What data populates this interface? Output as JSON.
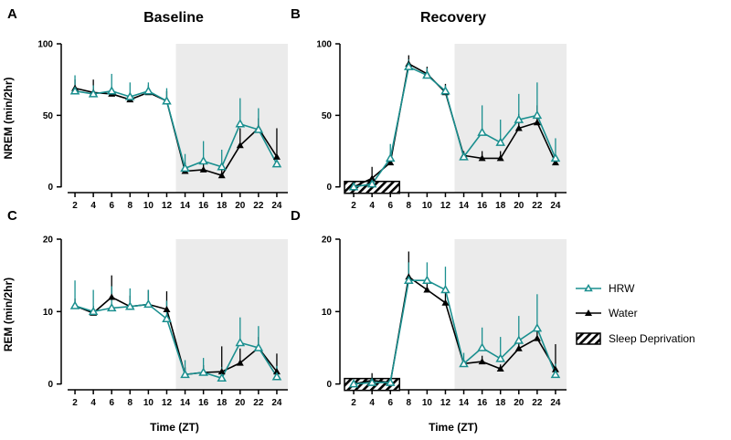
{
  "figure": {
    "column_titles": [
      "Baseline",
      "Recovery"
    ],
    "legend": {
      "items": [
        {
          "label": "HRW",
          "symbol": "open-triangle",
          "color": "#1a8f8f"
        },
        {
          "label": "Water",
          "symbol": "filled-triangle",
          "color": "#000000"
        },
        {
          "label": "Sleep Deprivation",
          "symbol": "hatched-box",
          "color": "#000000"
        }
      ]
    },
    "colors": {
      "hrw": "#1a8f8f",
      "water": "#000000",
      "dark_shade": "#ebebeb"
    }
  },
  "chart_data": [
    {
      "panel": "A",
      "type": "line",
      "title": "Baseline",
      "xlabel": "",
      "ylabel": "NREM (min/2hr)",
      "x": [
        2,
        4,
        6,
        8,
        10,
        12,
        14,
        16,
        18,
        20,
        22,
        24
      ],
      "x_ticks": [
        2,
        4,
        6,
        8,
        10,
        12,
        14,
        16,
        18,
        20,
        22,
        24
      ],
      "y_ticks": [
        0,
        50,
        100
      ],
      "xlim": [
        0.5,
        25.2
      ],
      "ylim": [
        -4,
        100
      ],
      "dark_phase": [
        13,
        25.2
      ],
      "sleep_deprivation": null,
      "series": [
        {
          "name": "HRW",
          "values": [
            67,
            65,
            67,
            63,
            67,
            60,
            13,
            18,
            14,
            44,
            40,
            16
          ],
          "error": [
            11,
            6,
            12,
            10,
            6,
            9,
            10,
            14,
            12,
            18,
            15,
            6
          ]
        },
        {
          "name": "Water",
          "values": [
            69,
            66,
            65,
            61,
            66,
            60,
            11,
            12,
            8,
            29,
            41,
            21
          ],
          "error": [
            6,
            9,
            5,
            5,
            5,
            7,
            6,
            6,
            5,
            12,
            7,
            20
          ]
        }
      ]
    },
    {
      "panel": "B",
      "type": "line",
      "title": "Recovery",
      "xlabel": "",
      "ylabel": "",
      "x": [
        2,
        4,
        6,
        8,
        10,
        12,
        14,
        16,
        18,
        20,
        22,
        24
      ],
      "x_ticks": [
        2,
        4,
        6,
        8,
        10,
        12,
        14,
        16,
        18,
        20,
        22,
        24
      ],
      "y_ticks": [
        0,
        50,
        100
      ],
      "xlim": [
        0.5,
        25.2
      ],
      "ylim": [
        -4,
        100
      ],
      "dark_phase": [
        13,
        25.2
      ],
      "sleep_deprivation": [
        1,
        7
      ],
      "series": [
        {
          "name": "HRW",
          "values": [
            0,
            2,
            20,
            84,
            78,
            67,
            21,
            38,
            31,
            47,
            50,
            20
          ],
          "error": [
            2,
            3,
            10,
            5,
            5,
            4,
            3,
            19,
            16,
            18,
            23,
            14
          ]
        },
        {
          "name": "Water",
          "values": [
            0,
            6,
            17,
            86,
            79,
            66,
            22,
            20,
            20,
            41,
            45,
            17
          ],
          "error": [
            2,
            8,
            7,
            6,
            5,
            6,
            3,
            5,
            5,
            10,
            12,
            5
          ]
        }
      ]
    },
    {
      "panel": "C",
      "type": "line",
      "title": "",
      "xlabel": "Time (ZT)",
      "ylabel": "REM (min/2hr)",
      "x": [
        2,
        4,
        6,
        8,
        10,
        12,
        14,
        16,
        18,
        20,
        22,
        24
      ],
      "x_ticks": [
        2,
        4,
        6,
        8,
        10,
        12,
        14,
        16,
        18,
        20,
        22,
        24
      ],
      "y_ticks": [
        0,
        10,
        20
      ],
      "xlim": [
        0.5,
        25.2
      ],
      "ylim": [
        -0.8,
        20
      ],
      "dark_phase": [
        13,
        25.2
      ],
      "sleep_deprivation": null,
      "series": [
        {
          "name": "HRW",
          "values": [
            10.8,
            10,
            10.5,
            10.7,
            11,
            9,
            1.3,
            1.6,
            0.8,
            5.7,
            5,
            1
          ],
          "error": [
            3.5,
            3,
            3,
            2.5,
            2,
            2.5,
            2,
            2,
            1.5,
            3.5,
            3,
            1.5
          ]
        },
        {
          "name": "Water",
          "values": [
            10.8,
            9.8,
            12,
            10.7,
            11,
            10.3,
            1.3,
            1.6,
            1.7,
            2.9,
            5,
            1.7
          ],
          "error": [
            1,
            1,
            3,
            1.5,
            2,
            2.5,
            1,
            1,
            3.5,
            2,
            1.5,
            2.5
          ]
        }
      ]
    },
    {
      "panel": "D",
      "type": "line",
      "title": "",
      "xlabel": "Time (ZT)",
      "ylabel": "",
      "x": [
        2,
        4,
        6,
        8,
        10,
        12,
        14,
        16,
        18,
        20,
        22,
        24
      ],
      "x_ticks": [
        2,
        4,
        6,
        8,
        10,
        12,
        14,
        16,
        18,
        20,
        22,
        24
      ],
      "y_ticks": [
        0,
        10,
        20
      ],
      "xlim": [
        0.5,
        25.2
      ],
      "ylim": [
        -0.8,
        20
      ],
      "dark_phase": [
        13,
        25.2
      ],
      "sleep_deprivation": [
        1,
        7
      ],
      "series": [
        {
          "name": "HRW",
          "values": [
            0,
            0.2,
            0.2,
            14.3,
            14.3,
            13,
            2.8,
            5,
            3.5,
            6,
            7.7,
            1.3
          ],
          "error": [
            0.5,
            0.5,
            0.5,
            2.5,
            2.5,
            3.2,
            1.5,
            2.8,
            3,
            3.4,
            4.7,
            1.5
          ]
        },
        {
          "name": "Water",
          "values": [
            0,
            0.5,
            0.2,
            14.8,
            13,
            11.2,
            2.8,
            3.1,
            2.1,
            4.9,
            6.3,
            2
          ],
          "error": [
            0.5,
            1,
            0.5,
            3.5,
            1.5,
            1.5,
            0.5,
            0.8,
            0.6,
            1,
            1.2,
            3.5
          ]
        }
      ]
    }
  ]
}
